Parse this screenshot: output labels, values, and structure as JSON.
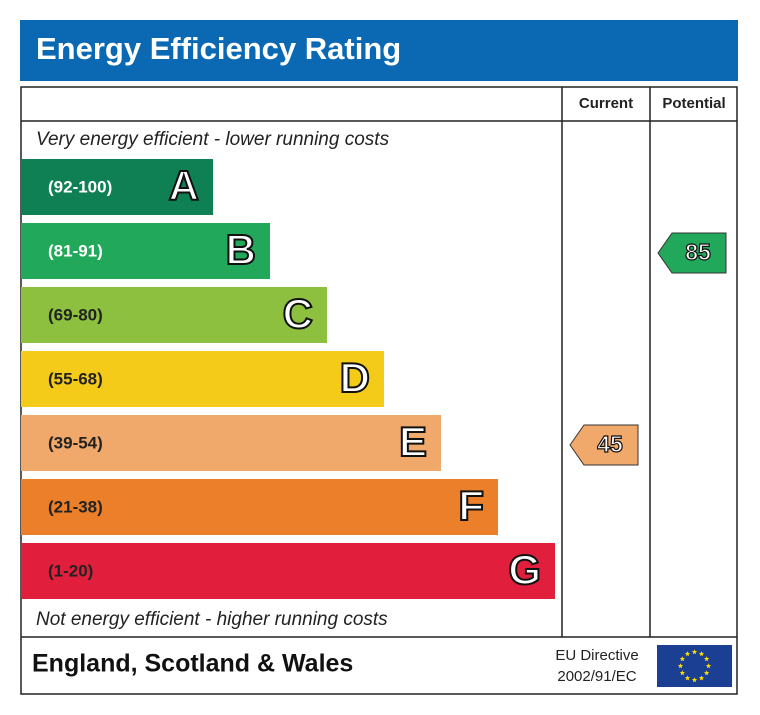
{
  "header": {
    "title": "Energy Efficiency Rating"
  },
  "columns": {
    "current": "Current",
    "potential": "Potential"
  },
  "top_note": "Very energy efficient - lower running costs",
  "bottom_note": "Not energy efficient - higher running costs",
  "bands": [
    {
      "range": "(92-100)",
      "letter": "A",
      "color": "#0f8054",
      "text_color": "#ffffff"
    },
    {
      "range": "(81-91)",
      "letter": "B",
      "color": "#22a85a",
      "text_color": "#ffffff"
    },
    {
      "range": "(69-80)",
      "letter": "C",
      "color": "#8dc03f",
      "text_color": "#222222"
    },
    {
      "range": "(55-68)",
      "letter": "D",
      "color": "#f5cb1a",
      "text_color": "#222222"
    },
    {
      "range": "(39-54)",
      "letter": "E",
      "color": "#f1a96b",
      "text_color": "#222222"
    },
    {
      "range": "(21-38)",
      "letter": "F",
      "color": "#ec7f2a",
      "text_color": "#222222"
    },
    {
      "range": "(1-20)",
      "letter": "G",
      "color": "#e21e3d",
      "text_color": "#222222"
    }
  ],
  "current": 45,
  "potential": 85,
  "footer": {
    "region": "England, Scotland & Wales",
    "directive": [
      "EU Directive",
      "2002/91/EC"
    ]
  }
}
